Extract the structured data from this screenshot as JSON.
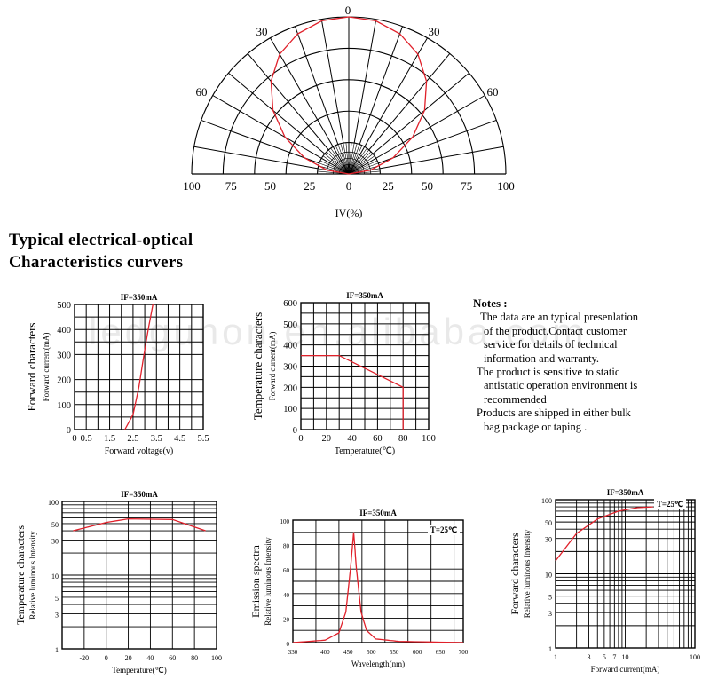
{
  "heading": {
    "line1": "Typical electrical-optical",
    "line2": "Characteristics curvers"
  },
  "watermark": "ledguhon.en.alibaba.com",
  "notes": {
    "title": "Notes :",
    "lines": [
      "The data are an typical presenlation",
      "of the product.Contact customer",
      "service for details of technical",
      "information and warranty.",
      "The product is sensitive to static",
      "antistatic operation environment is",
      "recommended",
      "Products are shipped in either bulk",
      "bag package or taping ."
    ]
  },
  "colors": {
    "curve": "#e0202a",
    "grid": "#000000",
    "background": "#ffffff"
  },
  "chart_data": [
    {
      "id": "polar",
      "type": "line",
      "title": "",
      "xlabel": "IV(%)",
      "radial_ticks": [
        "100",
        "75",
        "50",
        "25",
        "0",
        "25",
        "50",
        "75",
        "100"
      ],
      "angle_labels": [
        "0",
        "30",
        "30",
        "60",
        "60"
      ],
      "series": [
        {
          "angles": [
            -90,
            -80,
            -70,
            -60,
            -50,
            -40,
            -30,
            -20,
            -10,
            0,
            10,
            20,
            30,
            40,
            50,
            60,
            70,
            80,
            90
          ],
          "values": [
            0,
            14,
            30,
            47,
            63,
            77,
            88,
            95,
            99,
            100,
            99,
            95,
            88,
            77,
            63,
            47,
            30,
            14,
            0
          ]
        }
      ]
    },
    {
      "id": "fwd-voltage",
      "type": "line",
      "title": "IF=350mA",
      "xlabel": "Forward voltage(v)",
      "ylabel": "Forward characters",
      "ylabel2": "Forward current(mA)",
      "xlim": [
        0,
        5.5
      ],
      "ylim": [
        0,
        500
      ],
      "xticks": [
        "0",
        "0.5",
        "1.5",
        "2.5",
        "3.5",
        "4.5",
        "5.5"
      ],
      "yticks": [
        "0",
        "100",
        "200",
        "300",
        "400",
        "500"
      ],
      "series": [
        {
          "x": [
            2.15,
            2.5,
            2.75,
            2.95,
            3.15,
            3.35
          ],
          "y": [
            0,
            60,
            170,
            290,
            400,
            500
          ]
        }
      ]
    },
    {
      "id": "temp-current",
      "type": "line",
      "title": "IF=350mA",
      "xlabel": "Temperature(℃)",
      "ylabel": "Temperature characters",
      "ylabel2": "Forward current(mA)",
      "xlim": [
        0,
        100
      ],
      "ylim": [
        0,
        600
      ],
      "xticks": [
        "0",
        "20",
        "40",
        "60",
        "80",
        "100"
      ],
      "yticks": [
        "0",
        "100",
        "200",
        "300",
        "400",
        "500",
        "600"
      ],
      "series": [
        {
          "x": [
            0,
            30,
            80,
            80
          ],
          "y": [
            350,
            350,
            200,
            0
          ]
        }
      ]
    },
    {
      "id": "temp-intensity",
      "type": "line",
      "title": "IF=350mA",
      "xlabel": "Temperature(℃)",
      "ylabel": "Temperature characters",
      "ylabel2": "Relative luminous Intensity",
      "xlim": [
        -40,
        100
      ],
      "ylim": [
        1,
        100
      ],
      "yscale": "log",
      "xticks": [
        "-20",
        "0",
        "20",
        "40",
        "60",
        "80",
        "100"
      ],
      "yticks": [
        "1",
        "3",
        "5",
        "10",
        "30",
        "50",
        "100"
      ],
      "series": [
        {
          "x": [
            -30,
            0,
            20,
            60,
            90
          ],
          "y": [
            40,
            52,
            58,
            57,
            40
          ]
        }
      ]
    },
    {
      "id": "emission",
      "type": "line",
      "title": "IF=350mA",
      "annotation": "T=25℃",
      "xlabel": "Wavelength(nm)",
      "ylabel": "Emission spectra",
      "ylabel2": "Relative luminous Intensity",
      "xlim": [
        330,
        700
      ],
      "ylim": [
        0,
        100
      ],
      "xticks": [
        "330",
        "400",
        "450",
        "500",
        "550",
        "600",
        "650",
        "700"
      ],
      "yticks": [
        "0",
        "20",
        "40",
        "60",
        "80",
        "100"
      ],
      "series": [
        {
          "x": [
            330,
            400,
            430,
            445,
            455,
            462,
            468,
            478,
            490,
            510,
            560,
            700
          ],
          "y": [
            0,
            2,
            8,
            25,
            60,
            90,
            60,
            25,
            10,
            3,
            1,
            0
          ]
        }
      ]
    },
    {
      "id": "fwd-current",
      "type": "line",
      "title": "IF=350mA",
      "annotation": "T=25℃",
      "xlabel": "Forward current(mA)",
      "ylabel": "Forward characters",
      "ylabel2": "Relative luminous Intensity",
      "xlim": [
        1,
        100
      ],
      "ylim": [
        1,
        100
      ],
      "xscale": "log",
      "yscale": "log",
      "xticks": [
        "1",
        "3",
        "5",
        "7",
        "10",
        "100"
      ],
      "yticks": [
        "1",
        "3",
        "5",
        "10",
        "30",
        "50",
        "100"
      ],
      "series": [
        {
          "x": [
            1,
            2,
            4,
            8,
            15,
            25
          ],
          "y": [
            15,
            35,
            55,
            70,
            78,
            80
          ]
        }
      ]
    }
  ]
}
